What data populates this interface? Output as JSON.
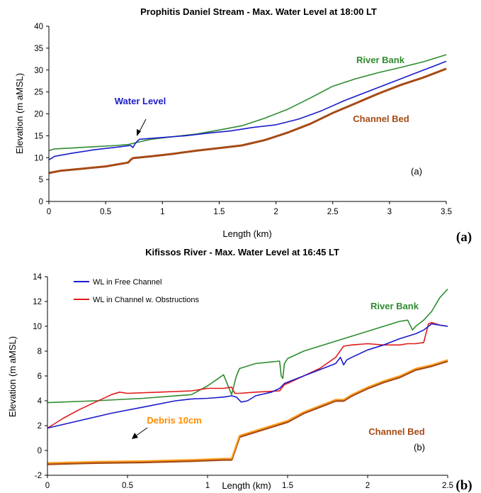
{
  "chart_data": [
    {
      "type": "line",
      "title": "Prophitis Daniel Stream - Max. Water Level at 18:00 LT",
      "xlabel": "Length (km)",
      "ylabel": "Elevation (m aMSL)",
      "xlim": [
        0,
        3.5
      ],
      "ylim": [
        0,
        40
      ],
      "xticks": [
        "0",
        "0.5",
        "1",
        "1.5",
        "2",
        "2.5",
        "3",
        "3.5"
      ],
      "yticks": [
        "0",
        "5",
        "10",
        "15",
        "20",
        "25",
        "30",
        "35",
        "40"
      ],
      "grid": false,
      "inner_label": "(a)",
      "panel_label": "(a)",
      "series": [
        {
          "name": "River Bank",
          "color": "#2e8b2e",
          "x": [
            0,
            0.05,
            0.2,
            0.4,
            0.6,
            0.7,
            0.78,
            0.9,
            1.1,
            1.3,
            1.5,
            1.7,
            1.9,
            2.1,
            2.3,
            2.5,
            2.7,
            2.9,
            3.1,
            3.3,
            3.5
          ],
          "y": [
            11.6,
            12.0,
            12.2,
            12.5,
            12.8,
            13.0,
            13.5,
            14.2,
            14.8,
            15.4,
            16.3,
            17.3,
            19.0,
            21.0,
            23.6,
            26.3,
            28.0,
            29.4,
            30.6,
            31.9,
            33.5
          ]
        },
        {
          "name": "Water Level",
          "color": "#1a1acc",
          "x": [
            0,
            0.05,
            0.2,
            0.4,
            0.6,
            0.72,
            0.74,
            0.76,
            0.78,
            0.8,
            1.0,
            1.2,
            1.4,
            1.6,
            1.8,
            2.0,
            2.2,
            2.4,
            2.6,
            2.8,
            3.0,
            3.2,
            3.4,
            3.5
          ],
          "y": [
            9.5,
            10.3,
            11.0,
            11.8,
            12.4,
            12.8,
            12.3,
            13.2,
            13.8,
            14.2,
            14.6,
            15.0,
            15.6,
            16.1,
            16.9,
            17.5,
            18.8,
            20.7,
            23.0,
            25.0,
            27.0,
            29.0,
            31.0,
            32.0
          ]
        },
        {
          "name": "Channel Bed",
          "color": "#a64a14",
          "x": [
            0,
            0.1,
            0.3,
            0.5,
            0.68,
            0.7,
            0.72,
            0.74,
            0.9,
            1.1,
            1.3,
            1.5,
            1.7,
            1.9,
            2.1,
            2.3,
            2.5,
            2.7,
            2.9,
            3.1,
            3.3,
            3.5
          ],
          "y": [
            6.5,
            7.0,
            7.5,
            8.0,
            8.8,
            8.9,
            9.5,
            9.9,
            10.3,
            10.9,
            11.6,
            12.2,
            12.8,
            14.0,
            15.7,
            17.7,
            20.2,
            22.4,
            24.6,
            26.6,
            28.3,
            30.3
          ]
        }
      ],
      "annotations": [
        {
          "text": "River Bank",
          "color": "#2e8b2e"
        },
        {
          "text": "Water Level",
          "color": "#1a1acc"
        },
        {
          "text": "Channel Bed",
          "color": "#a64a14"
        }
      ]
    },
    {
      "type": "line",
      "title": "Kifissos River - Max. Water Level at 16:45 LT",
      "xlabel": "Length (km)",
      "ylabel": "Elevation (m aMSL)",
      "xlim": [
        0,
        2.5
      ],
      "ylim": [
        -2,
        14
      ],
      "xticks": [
        "0",
        "0.5",
        "1",
        "1.5",
        "2",
        "2.5"
      ],
      "yticks": [
        "-2",
        "0",
        "2",
        "4",
        "6",
        "8",
        "10",
        "12",
        "14"
      ],
      "grid": false,
      "legend": "top-left",
      "inner_label": "(b)",
      "panel_label": "(b)",
      "series": [
        {
          "name": "River Bank",
          "color": "#2e8b2e",
          "x": [
            0,
            0.3,
            0.6,
            0.9,
            1.0,
            1.1,
            1.15,
            1.18,
            1.2,
            1.3,
            1.45,
            1.46,
            1.47,
            1.48,
            1.5,
            1.6,
            1.7,
            1.8,
            1.9,
            2.0,
            2.1,
            2.2,
            2.25,
            2.28,
            2.3,
            2.35,
            2.4,
            2.45,
            2.5
          ],
          "y": [
            3.85,
            4.0,
            4.2,
            4.5,
            5.2,
            6.1,
            4.5,
            6.0,
            6.6,
            7.0,
            7.2,
            6.0,
            5.8,
            7.0,
            7.4,
            8.0,
            8.4,
            8.8,
            9.2,
            9.6,
            10.0,
            10.4,
            10.5,
            9.7,
            10.0,
            10.5,
            11.2,
            12.3,
            13.0
          ]
        },
        {
          "name": "WL in Free Channel",
          "color": "#1a1acc",
          "x": [
            0,
            0.2,
            0.4,
            0.6,
            0.8,
            0.9,
            1.0,
            1.1,
            1.15,
            1.18,
            1.21,
            1.25,
            1.3,
            1.4,
            1.45,
            1.48,
            1.5,
            1.6,
            1.7,
            1.8,
            1.83,
            1.85,
            1.87,
            1.9,
            2.0,
            2.1,
            2.2,
            2.3,
            2.35,
            2.4,
            2.45,
            2.5
          ],
          "y": [
            1.8,
            2.4,
            3.0,
            3.5,
            4.0,
            4.15,
            4.2,
            4.3,
            4.4,
            4.3,
            3.9,
            4.0,
            4.4,
            4.7,
            5.0,
            5.4,
            5.5,
            6.0,
            6.5,
            7.0,
            7.5,
            6.9,
            7.3,
            7.5,
            8.1,
            8.5,
            9.0,
            9.4,
            9.7,
            10.2,
            10.1,
            10.0
          ]
        },
        {
          "name": "WL in Channel w. Obstructions",
          "color": "#e01a1a",
          "x": [
            0,
            0.1,
            0.2,
            0.3,
            0.4,
            0.45,
            0.5,
            0.7,
            0.9,
            1.0,
            1.1,
            1.15,
            1.17,
            1.2,
            1.3,
            1.45,
            1.48,
            1.5,
            1.6,
            1.7,
            1.8,
            1.85,
            1.9,
            2.0,
            2.1,
            2.2,
            2.25,
            2.3,
            2.35,
            2.38,
            2.4,
            2.45,
            2.5
          ],
          "y": [
            1.8,
            2.6,
            3.3,
            3.9,
            4.5,
            4.7,
            4.6,
            4.7,
            4.8,
            5.0,
            5.0,
            5.1,
            4.6,
            4.6,
            4.7,
            4.8,
            5.3,
            5.4,
            6.0,
            6.6,
            7.5,
            8.4,
            8.5,
            8.6,
            8.5,
            8.5,
            8.6,
            8.6,
            8.7,
            10.2,
            10.3,
            10.1,
            10.0
          ]
        },
        {
          "name": "Channel Bed",
          "color": "#a64a14",
          "x": [
            0,
            0.3,
            0.6,
            0.9,
            1.1,
            1.15,
            1.2,
            1.3,
            1.4,
            1.5,
            1.6,
            1.7,
            1.8,
            1.85,
            1.9,
            2.0,
            2.1,
            2.2,
            2.3,
            2.4,
            2.5
          ],
          "y": [
            -1.1,
            -1.0,
            -0.95,
            -0.85,
            -0.75,
            -0.75,
            1.1,
            1.5,
            1.9,
            2.3,
            3.0,
            3.5,
            4.0,
            4.0,
            4.4,
            5.0,
            5.5,
            5.9,
            6.5,
            6.8,
            7.2
          ]
        },
        {
          "name": "Debris 10cm",
          "color": "#ffa020",
          "x": [
            0,
            0.3,
            0.6,
            0.9,
            1.1,
            1.15,
            1.2,
            1.3,
            1.4,
            1.5,
            1.6,
            1.7,
            1.8,
            1.85,
            1.9,
            2.0,
            2.1,
            2.2,
            2.3,
            2.4,
            2.5
          ],
          "y": [
            -1.0,
            -0.9,
            -0.85,
            -0.75,
            -0.65,
            -0.65,
            1.2,
            1.6,
            2.0,
            2.4,
            3.1,
            3.6,
            4.1,
            4.1,
            4.5,
            5.1,
            5.6,
            6.0,
            6.6,
            6.9,
            7.3
          ]
        }
      ],
      "annotations": [
        {
          "text": "River Bank",
          "color": "#2e8b2e"
        },
        {
          "text": "Channel Bed",
          "color": "#a64a14"
        },
        {
          "text": "Debris 10cm",
          "color": "#ff8c00"
        }
      ]
    }
  ]
}
